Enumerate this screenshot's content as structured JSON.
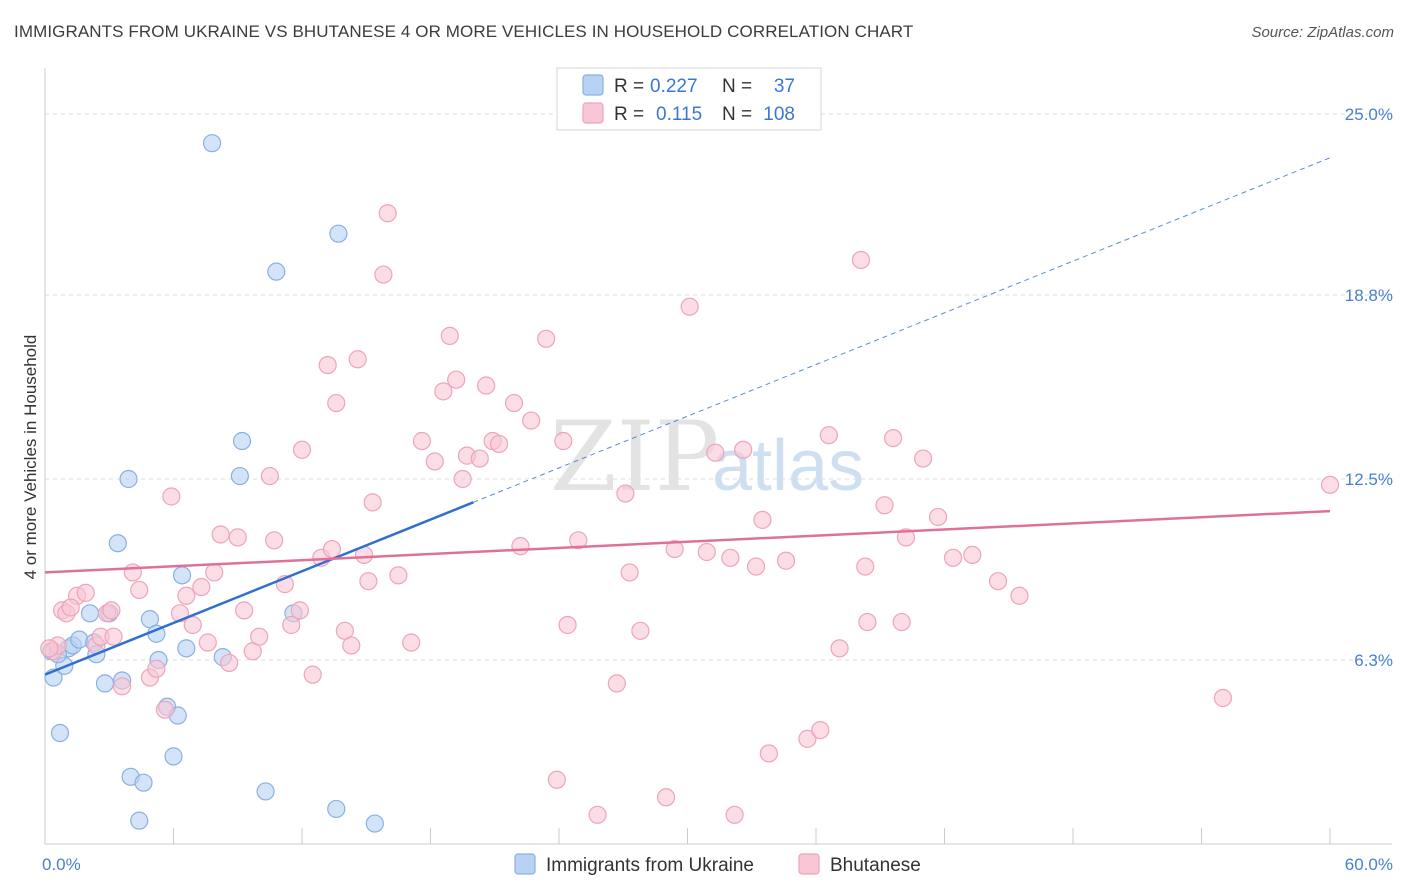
{
  "title": "IMMIGRANTS FROM UKRAINE VS BHUTANESE 4 OR MORE VEHICLES IN HOUSEHOLD CORRELATION CHART",
  "source": "Source: ZipAtlas.com",
  "watermark": {
    "zip": "ZIP",
    "atlas": "atlas"
  },
  "colors": {
    "ukraine_fill": "#b8d2f3",
    "ukraine_stroke": "#8ab0e0",
    "ukraine_line": "#2f6fce",
    "bhutanese_fill": "#f8c6d4",
    "bhutanese_stroke": "#eea4ba",
    "bhutanese_line": "#e0709a",
    "grid": "#dddddd",
    "axis_text": "#4a7fd0"
  },
  "legend": {
    "rows": [
      {
        "r_label": "R =",
        "r_value": "0.227",
        "n_label": "N =",
        "n_value": "37"
      },
      {
        "r_label": "R =",
        "r_value": "0.115",
        "n_label": "N =",
        "n_value": "108"
      }
    ]
  },
  "chart_data": {
    "type": "scatter",
    "xlabel": "",
    "ylabel": "4 or more Vehicles in Household",
    "xlim": [
      0,
      60
    ],
    "ylim": [
      0,
      26.3
    ],
    "x_tick_labels": [
      "0.0%",
      "60.0%"
    ],
    "y_ticks": [
      6.3,
      12.5,
      18.8,
      25.0
    ],
    "y_tick_labels": [
      "6.3%",
      "12.5%",
      "18.8%",
      "25.0%"
    ],
    "grid": true,
    "legend_placement": "top-center",
    "series": [
      {
        "name": "Immigrants from Ukraine",
        "points": [
          [
            0.3,
            6.6
          ],
          [
            0.4,
            5.7
          ],
          [
            0.7,
            3.8
          ],
          [
            0.9,
            6.1
          ],
          [
            1.1,
            6.7
          ],
          [
            1.3,
            6.8
          ],
          [
            1.6,
            7.0
          ],
          [
            2.1,
            7.9
          ],
          [
            2.3,
            6.9
          ],
          [
            2.4,
            6.5
          ],
          [
            2.8,
            5.5
          ],
          [
            3.0,
            7.9
          ],
          [
            3.4,
            10.3
          ],
          [
            3.6,
            5.6
          ],
          [
            3.9,
            12.5
          ],
          [
            4.0,
            2.3
          ],
          [
            4.4,
            0.8
          ],
          [
            4.6,
            2.1
          ],
          [
            4.9,
            7.7
          ],
          [
            5.2,
            7.2
          ],
          [
            5.3,
            6.3
          ],
          [
            5.7,
            4.7
          ],
          [
            6.0,
            3.0
          ],
          [
            6.2,
            4.4
          ],
          [
            6.4,
            9.2
          ],
          [
            6.6,
            6.7
          ],
          [
            7.8,
            24.0
          ],
          [
            8.3,
            6.4
          ],
          [
            9.1,
            12.6
          ],
          [
            9.2,
            13.8
          ],
          [
            10.3,
            1.8
          ],
          [
            10.8,
            19.6
          ],
          [
            11.6,
            7.9
          ],
          [
            13.6,
            1.2
          ],
          [
            13.7,
            20.9
          ],
          [
            15.4,
            0.7
          ],
          [
            0.6,
            6.5
          ]
        ]
      },
      {
        "name": "Bhutanese",
        "points": [
          [
            0.4,
            6.6
          ],
          [
            0.6,
            6.8
          ],
          [
            0.8,
            8.0
          ],
          [
            1.0,
            7.9
          ],
          [
            1.5,
            8.5
          ],
          [
            1.9,
            8.6
          ],
          [
            2.4,
            6.8
          ],
          [
            2.6,
            7.1
          ],
          [
            2.9,
            7.9
          ],
          [
            3.2,
            7.1
          ],
          [
            3.6,
            5.4
          ],
          [
            4.1,
            9.3
          ],
          [
            4.4,
            8.7
          ],
          [
            4.9,
            5.7
          ],
          [
            5.2,
            6.0
          ],
          [
            5.6,
            4.6
          ],
          [
            5.9,
            11.9
          ],
          [
            6.3,
            7.9
          ],
          [
            6.6,
            8.5
          ],
          [
            6.9,
            7.5
          ],
          [
            7.3,
            8.8
          ],
          [
            7.6,
            6.9
          ],
          [
            7.9,
            9.3
          ],
          [
            8.2,
            10.6
          ],
          [
            8.6,
            6.2
          ],
          [
            9.0,
            10.5
          ],
          [
            9.3,
            8.0
          ],
          [
            9.7,
            6.6
          ],
          [
            10.0,
            7.1
          ],
          [
            10.5,
            12.6
          ],
          [
            10.7,
            10.4
          ],
          [
            11.2,
            8.9
          ],
          [
            11.5,
            7.5
          ],
          [
            11.9,
            8.0
          ],
          [
            12.0,
            13.5
          ],
          [
            12.5,
            5.8
          ],
          [
            12.9,
            9.8
          ],
          [
            13.2,
            16.4
          ],
          [
            13.4,
            10.1
          ],
          [
            13.6,
            15.1
          ],
          [
            14.0,
            7.3
          ],
          [
            14.3,
            6.8
          ],
          [
            14.6,
            16.6
          ],
          [
            14.9,
            9.9
          ],
          [
            15.1,
            9.0
          ],
          [
            15.3,
            11.7
          ],
          [
            15.8,
            19.5
          ],
          [
            16.0,
            21.6
          ],
          [
            16.5,
            9.2
          ],
          [
            17.1,
            6.9
          ],
          [
            17.6,
            13.8
          ],
          [
            18.2,
            13.1
          ],
          [
            18.6,
            15.5
          ],
          [
            18.9,
            17.4
          ],
          [
            19.2,
            15.9
          ],
          [
            19.5,
            12.5
          ],
          [
            19.7,
            13.3
          ],
          [
            20.3,
            13.2
          ],
          [
            20.6,
            15.7
          ],
          [
            20.9,
            13.8
          ],
          [
            21.2,
            13.7
          ],
          [
            21.9,
            15.1
          ],
          [
            22.2,
            10.2
          ],
          [
            22.7,
            14.5
          ],
          [
            23.4,
            17.3
          ],
          [
            23.9,
            2.2
          ],
          [
            24.2,
            13.8
          ],
          [
            24.4,
            7.5
          ],
          [
            24.9,
            10.4
          ],
          [
            25.8,
            1.0
          ],
          [
            26.7,
            5.5
          ],
          [
            27.1,
            12.0
          ],
          [
            27.3,
            9.3
          ],
          [
            27.8,
            7.3
          ],
          [
            29.0,
            1.6
          ],
          [
            29.4,
            10.1
          ],
          [
            30.1,
            18.4
          ],
          [
            30.9,
            10.0
          ],
          [
            31.3,
            13.4
          ],
          [
            32.0,
            9.8
          ],
          [
            32.2,
            1.0
          ],
          [
            32.6,
            13.5
          ],
          [
            33.2,
            9.5
          ],
          [
            33.5,
            11.1
          ],
          [
            33.8,
            3.1
          ],
          [
            34.6,
            9.7
          ],
          [
            35.6,
            3.6
          ],
          [
            36.2,
            3.9
          ],
          [
            36.6,
            14.0
          ],
          [
            37.1,
            6.7
          ],
          [
            38.1,
            20.0
          ],
          [
            38.3,
            9.5
          ],
          [
            38.4,
            7.6
          ],
          [
            39.2,
            11.6
          ],
          [
            39.6,
            13.9
          ],
          [
            40.0,
            7.6
          ],
          [
            40.2,
            10.5
          ],
          [
            41.0,
            13.2
          ],
          [
            41.7,
            11.2
          ],
          [
            42.4,
            9.8
          ],
          [
            43.3,
            9.9
          ],
          [
            44.5,
            9.0
          ],
          [
            45.5,
            8.5
          ],
          [
            55.0,
            5.0
          ],
          [
            60.0,
            12.3
          ],
          [
            0.2,
            6.7
          ],
          [
            1.2,
            8.1
          ],
          [
            3.1,
            8.0
          ]
        ]
      }
    ],
    "trend_lines": [
      {
        "series": "Immigrants from Ukraine",
        "solid": [
          [
            0,
            5.8
          ],
          [
            20,
            11.7
          ]
        ],
        "dashed": [
          [
            20,
            11.7
          ],
          [
            60,
            23.5
          ]
        ]
      },
      {
        "series": "Bhutanese",
        "solid": [
          [
            0,
            9.3
          ],
          [
            60,
            11.4
          ]
        ]
      }
    ]
  }
}
